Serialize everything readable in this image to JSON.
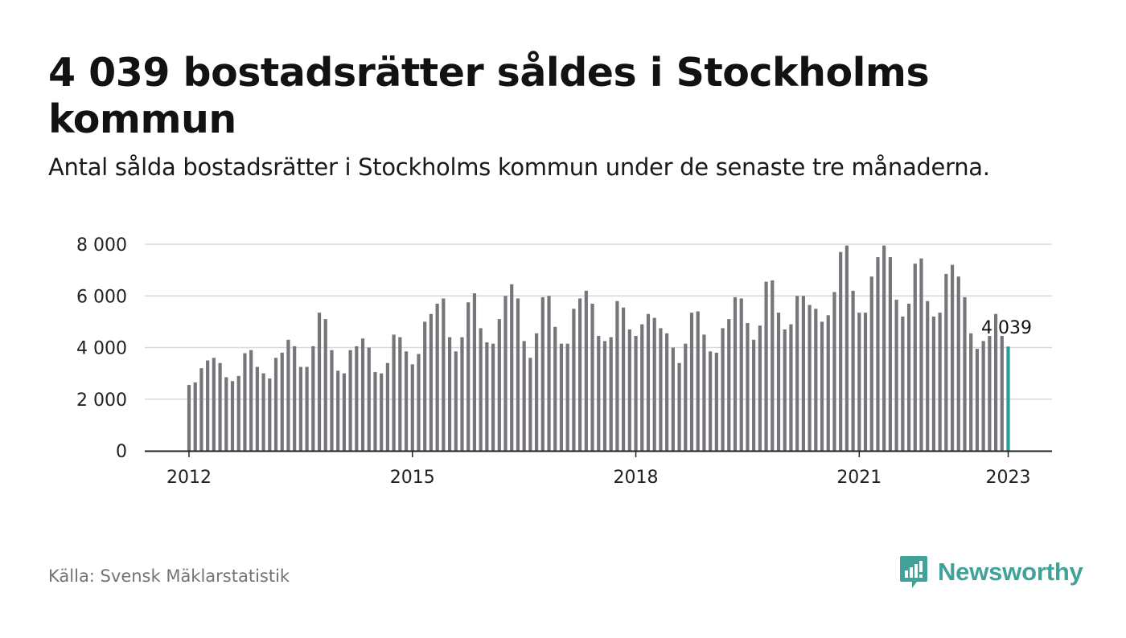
{
  "header": {
    "title": "4 039 bostadsrätter såldes i Stockholms kommun",
    "subtitle": "Antal sålda bostadsrätter i Stockholms kommun under de senaste tre månaderna."
  },
  "footer": {
    "source": "Källa: Svensk Mäklarstatistik",
    "brand": "Newsworthy",
    "brand_icon": "newsworthy-logo-icon"
  },
  "colors": {
    "bar": "#75757a",
    "highlight": "#2a9d8f",
    "grid": "#d9d9d9",
    "axis": "#222222",
    "brand": "#3fa39a"
  },
  "chart_data": {
    "type": "bar",
    "title": "4 039 bostadsrätter såldes i Stockholms kommun",
    "subtitle": "Antal sålda bostadsrätter i Stockholms kommun under de senaste tre månaderna.",
    "xlabel": "",
    "ylabel": "",
    "ylim": [
      0,
      8000
    ],
    "yticks": [
      0,
      2000,
      4000,
      6000,
      8000
    ],
    "ytick_labels": [
      "0",
      "2 000",
      "4 000",
      "6 000",
      "8 000"
    ],
    "xticks": [
      "2012-01",
      "2015-01",
      "2018-01",
      "2021-01",
      "2023-01"
    ],
    "xtick_labels": [
      "2012",
      "2015",
      "2018",
      "2021",
      "2023"
    ],
    "grid": true,
    "highlight_label": "4 039",
    "categories": [
      "2012-01",
      "2012-02",
      "2012-03",
      "2012-04",
      "2012-05",
      "2012-06",
      "2012-07",
      "2012-08",
      "2012-09",
      "2012-10",
      "2012-11",
      "2012-12",
      "2013-01",
      "2013-02",
      "2013-03",
      "2013-04",
      "2013-05",
      "2013-06",
      "2013-07",
      "2013-08",
      "2013-09",
      "2013-10",
      "2013-11",
      "2013-12",
      "2014-01",
      "2014-02",
      "2014-03",
      "2014-04",
      "2014-05",
      "2014-06",
      "2014-07",
      "2014-08",
      "2014-09",
      "2014-10",
      "2014-11",
      "2014-12",
      "2015-01",
      "2015-02",
      "2015-03",
      "2015-04",
      "2015-05",
      "2015-06",
      "2015-07",
      "2015-08",
      "2015-09",
      "2015-10",
      "2015-11",
      "2015-12",
      "2016-01",
      "2016-02",
      "2016-03",
      "2016-04",
      "2016-05",
      "2016-06",
      "2016-07",
      "2016-08",
      "2016-09",
      "2016-10",
      "2016-11",
      "2016-12",
      "2017-01",
      "2017-02",
      "2017-03",
      "2017-04",
      "2017-05",
      "2017-06",
      "2017-07",
      "2017-08",
      "2017-09",
      "2017-10",
      "2017-11",
      "2017-12",
      "2018-01",
      "2018-02",
      "2018-03",
      "2018-04",
      "2018-05",
      "2018-06",
      "2018-07",
      "2018-08",
      "2018-09",
      "2018-10",
      "2018-11",
      "2018-12",
      "2019-01",
      "2019-02",
      "2019-03",
      "2019-04",
      "2019-05",
      "2019-06",
      "2019-07",
      "2019-08",
      "2019-09",
      "2019-10",
      "2019-11",
      "2019-12",
      "2020-01",
      "2020-02",
      "2020-03",
      "2020-04",
      "2020-05",
      "2020-06",
      "2020-07",
      "2020-08",
      "2020-09",
      "2020-10",
      "2020-11",
      "2020-12",
      "2021-01",
      "2021-02",
      "2021-03",
      "2021-04",
      "2021-05",
      "2021-06",
      "2021-07",
      "2021-08",
      "2021-09",
      "2021-10",
      "2021-11",
      "2021-12",
      "2022-01",
      "2022-02",
      "2022-03",
      "2022-04",
      "2022-05",
      "2022-06",
      "2022-07",
      "2022-08",
      "2022-09",
      "2022-10",
      "2022-11",
      "2022-12",
      "2023-01"
    ],
    "values": [
      2550,
      2650,
      3200,
      3500,
      3600,
      3400,
      2850,
      2700,
      2900,
      3780,
      3900,
      3250,
      3000,
      2800,
      3600,
      3800,
      4300,
      4050,
      3250,
      3250,
      4050,
      5350,
      5100,
      3900,
      3100,
      3000,
      3900,
      4050,
      4350,
      4000,
      3050,
      3000,
      3400,
      4500,
      4400,
      3850,
      3350,
      3750,
      5000,
      5300,
      5700,
      5900,
      4400,
      3850,
      4400,
      5750,
      6100,
      4750,
      4200,
      4150,
      5100,
      6000,
      6450,
      5900,
      4250,
      3600,
      4550,
      5950,
      6000,
      4800,
      4150,
      4150,
      5500,
      5900,
      6200,
      5700,
      4450,
      4250,
      4400,
      5800,
      5550,
      4700,
      4450,
      4900,
      5300,
      5150,
      4750,
      4550,
      4000,
      3400,
      4150,
      5350,
      5400,
      4500,
      3850,
      3800,
      4750,
      5100,
      5950,
      5900,
      4950,
      4300,
      4850,
      6550,
      6600,
      5350,
      4700,
      4900,
      6000,
      6000,
      5650,
      5500,
      5000,
      5250,
      6150,
      7700,
      7950,
      6200,
      5350,
      5350,
      6750,
      7500,
      7950,
      7500,
      5850,
      5200,
      5700,
      7250,
      7450,
      5800,
      5200,
      5350,
      6850,
      7200,
      6750,
      5950,
      4550,
      3950,
      4250,
      4450,
      5300,
      4450,
      4039
    ]
  }
}
